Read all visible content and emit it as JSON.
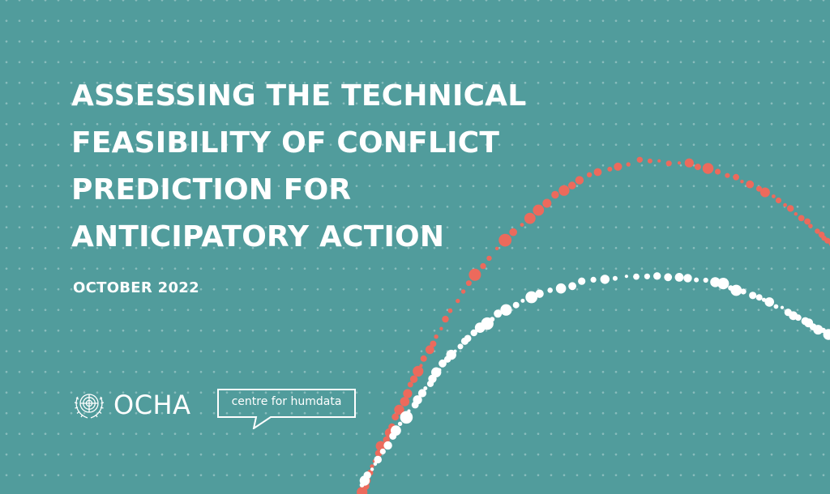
{
  "cover": {
    "title_lines": [
      "ASSESSING THE TECHNICAL",
      "FEASIBILITY OF CONFLICT",
      "PREDICTION FOR",
      "ANTICIPATORY ACTION"
    ],
    "date": "OCTOBER 2022"
  },
  "logos": {
    "ocha": {
      "text": "OCHA",
      "icon": "un-emblem-icon"
    },
    "humdata": {
      "text": "centre for humdata",
      "icon": "speech-bubble-icon"
    }
  },
  "colors": {
    "background": "#519c9c",
    "dot_grid": "#8cc0c0",
    "coral_arc": "#ec6a5c",
    "white_arc": "#ffffff",
    "text": "#ffffff"
  }
}
